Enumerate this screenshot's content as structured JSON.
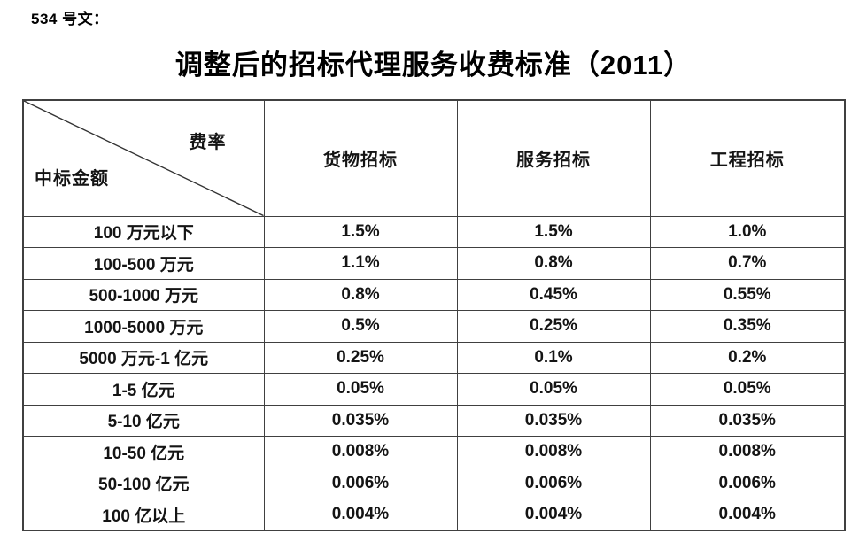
{
  "page": {
    "doc_ref": "534 号文：",
    "title": "调整后的招标代理服务收费标准（2011）"
  },
  "table": {
    "corner": {
      "top_right": "费率",
      "bottom_left": "中标金额"
    },
    "columns": [
      "货物招标",
      "服务招标",
      "工程招标"
    ],
    "rows": [
      {
        "label": "100 万元以下",
        "values": [
          "1.5%",
          "1.5%",
          "1.0%"
        ]
      },
      {
        "label": "100-500 万元",
        "values": [
          "1.1%",
          "0.8%",
          "0.7%"
        ]
      },
      {
        "label": "500-1000 万元",
        "values": [
          "0.8%",
          "0.45%",
          "0.55%"
        ]
      },
      {
        "label": "1000-5000 万元",
        "values": [
          "0.5%",
          "0.25%",
          "0.35%"
        ]
      },
      {
        "label": "5000 万元-1 亿元",
        "values": [
          "0.25%",
          "0.1%",
          "0.2%"
        ]
      },
      {
        "label": "1-5 亿元",
        "values": [
          "0.05%",
          "0.05%",
          "0.05%"
        ]
      },
      {
        "label": "5-10 亿元",
        "values": [
          "0.035%",
          "0.035%",
          "0.035%"
        ]
      },
      {
        "label": "10-50 亿元",
        "values": [
          "0.008%",
          "0.008%",
          "0.008%"
        ]
      },
      {
        "label": "50-100 亿元",
        "values": [
          "0.006%",
          "0.006%",
          "0.006%"
        ]
      },
      {
        "label": "100 亿以上",
        "values": [
          "0.004%",
          "0.004%",
          "0.004%"
        ]
      }
    ]
  },
  "colors": {
    "text": "#141414",
    "border": "#404040",
    "background": "#ffffff"
  }
}
